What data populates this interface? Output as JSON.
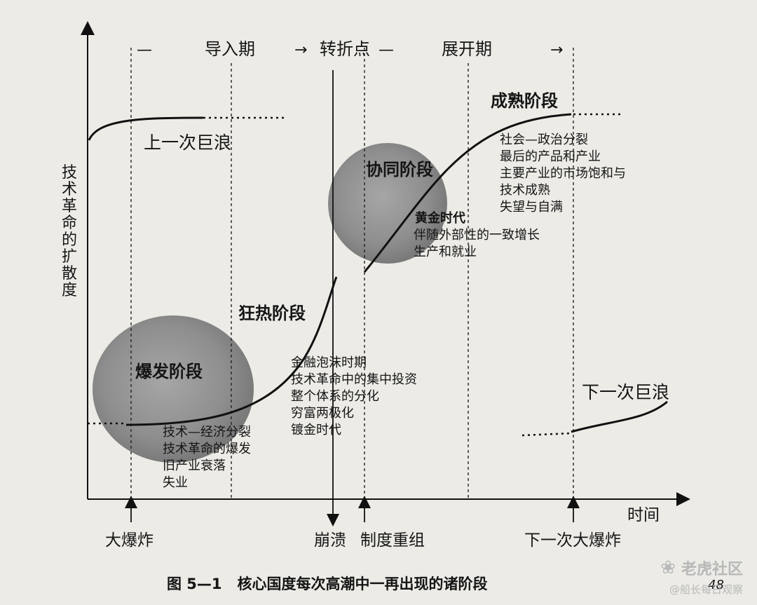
{
  "axes": {
    "y_label": "技术革命的扩散度",
    "x_label": "时间"
  },
  "top_bar": {
    "dash_left": "—",
    "phase_intro": "导入期",
    "arrow": "→",
    "turning_point": "转折点",
    "dash_mid": "—",
    "phase_deploy": "展开期",
    "arrow_right": "→"
  },
  "stages": {
    "previous_wave": "上一次巨浪",
    "mature": "成熟阶段",
    "synergy": "协同阶段",
    "frenzy": "狂热阶段",
    "eruption": "爆发阶段",
    "next_wave": "下一次巨浪"
  },
  "notes": {
    "eruption": [
      "技术—经济分裂",
      "技术革命的爆发",
      "旧产业衰落",
      "失业"
    ],
    "frenzy": [
      "金融泡沫时期",
      "技术革命中的集中投资",
      "整个体系的分化",
      "穷富两极化",
      "镀金时代"
    ],
    "synergy": [
      "黄金时代",
      "伴随外部性的一致增长",
      "生产和就业"
    ],
    "maturity": [
      "社会—政治分裂",
      "最后的产品和产业",
      "主要产业的市场饱和与",
      "技术成熟",
      "失望与自满"
    ]
  },
  "events": {
    "big_bang": "大爆炸",
    "crash": "崩溃",
    "restructuring": "制度重组",
    "next_big_bang": "下一次大爆炸"
  },
  "caption": "图 5—1   核心国度每次高潮中一再出现的诸阶段",
  "page_number": "48",
  "watermark": {
    "name": "老虎社区",
    "handle": "@船长每日观察"
  }
}
